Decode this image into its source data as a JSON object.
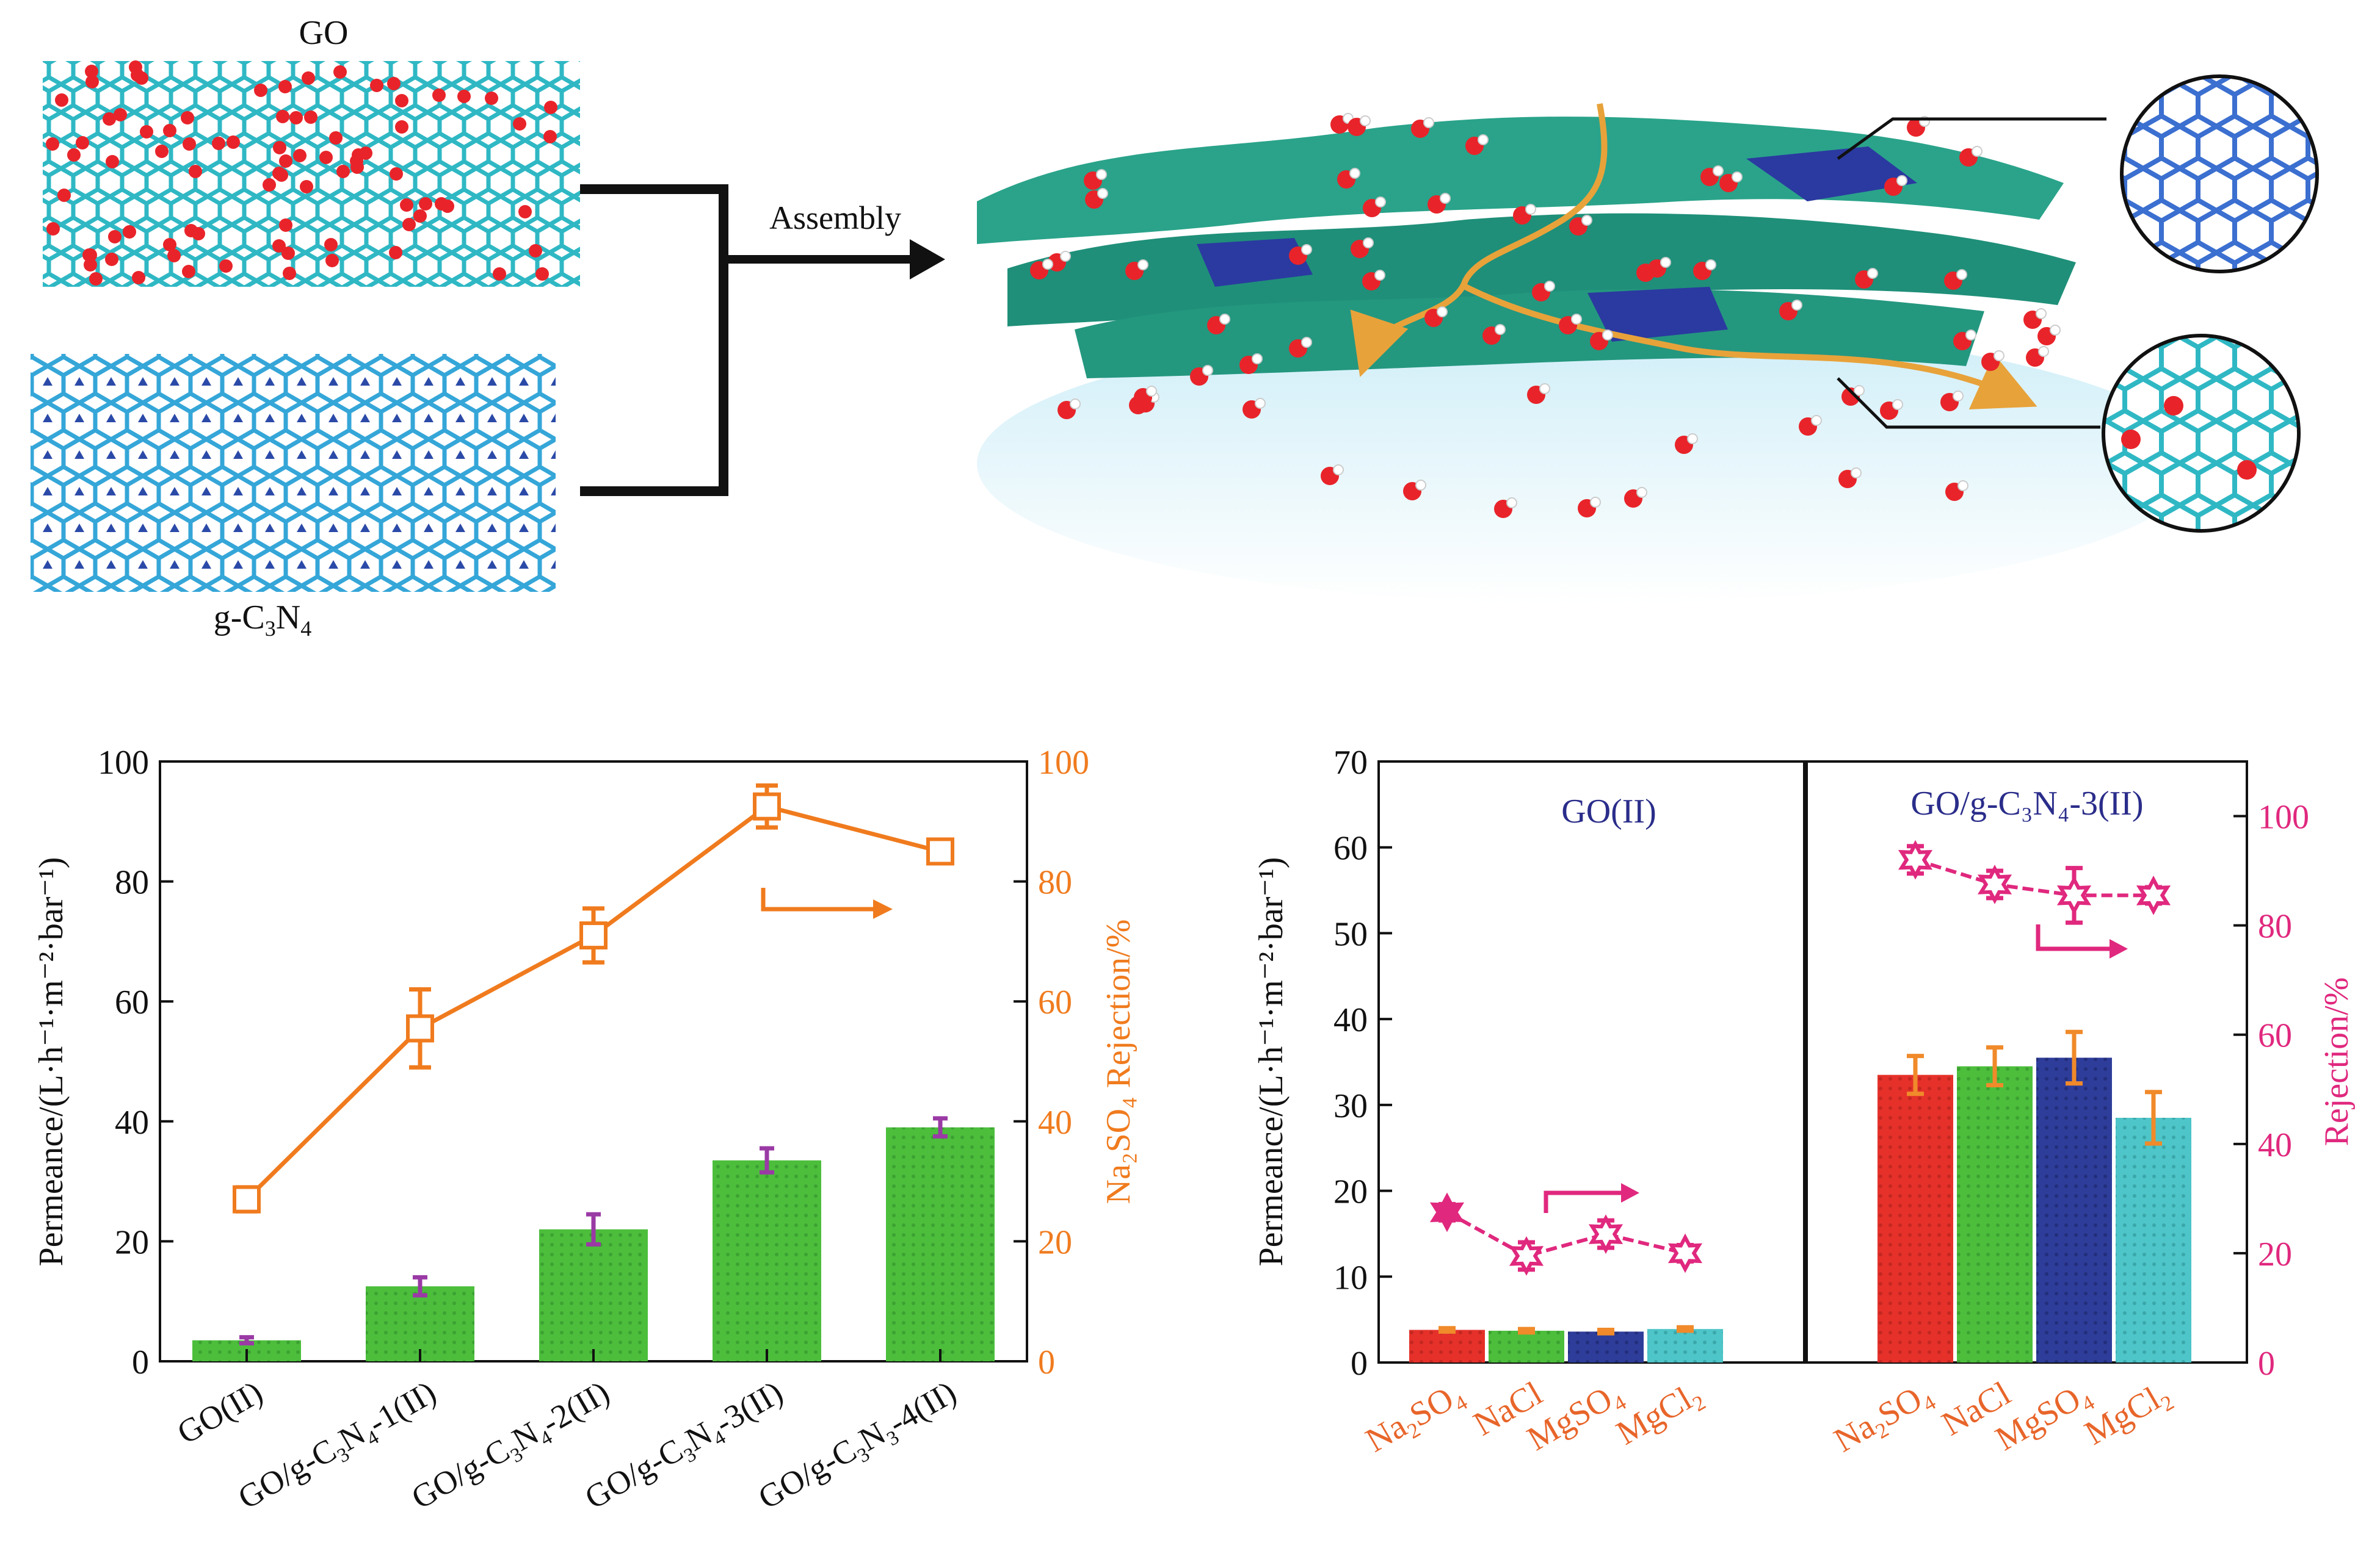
{
  "schematic": {
    "go_label": "GO",
    "gcn_label_parts": [
      "g-C",
      "3",
      "N",
      "4"
    ],
    "assembly_label": "Assembly"
  },
  "colors": {
    "go_lattice": "#2fb8c4",
    "gcn_lattice": "#2b4aa8",
    "oxygen": "#e8242a",
    "sheet": "#2aa38a",
    "path": "#e8a23a",
    "bar_green": "#4cbe3c",
    "line_orange": "#f07b1e",
    "pink": "#e0287e",
    "bar_red": "#e5312a",
    "bar_blue": "#2e3d9a",
    "bar_cyan": "#4ec5c8",
    "err_purple": "#9a3aa5",
    "navy_text": "#2a2d8a",
    "salt_text": "#e8652a"
  },
  "chart_data": [
    {
      "type": "bar",
      "ylabel": "Permeance/(L·h⁻¹·m⁻²·bar⁻¹)",
      "y2label": "Na₂SO₄ Rejection/%",
      "ylim": [
        0,
        100
      ],
      "y2lim": [
        0,
        100
      ],
      "yticks": [
        0,
        20,
        40,
        60,
        80,
        100
      ],
      "y2ticks": [
        0,
        20,
        40,
        60,
        80,
        100
      ],
      "categories": [
        "GO(II)",
        "GO/g-C₃N₄-1(II)",
        "GO/g-C₃N₄-2(II)",
        "GO/g-C₃N₄-3(II)",
        "GO/g-C₃N₃-4(II)"
      ],
      "permeance": [
        3.5,
        12.5,
        22,
        33.5,
        39
      ],
      "permeance_err": [
        0.5,
        1.5,
        2.5,
        2,
        1.5
      ],
      "rejection": [
        27,
        55.5,
        71,
        92.5,
        85
      ],
      "rejection_err": [
        2,
        6.5,
        4.5,
        3.5,
        1
      ]
    },
    {
      "type": "bar",
      "ylabel": "Permeance/(L·h⁻¹·m⁻²·bar⁻¹)",
      "y2label": "Rejection/%",
      "ylim": [
        0,
        70
      ],
      "y2lim": [
        0,
        110
      ],
      "yticks": [
        0,
        10,
        20,
        30,
        40,
        50,
        60,
        70
      ],
      "y2ticks": [
        0,
        20,
        40,
        60,
        80,
        100
      ],
      "panels": [
        {
          "title": "GO(II)",
          "categories": [
            "Na₂SO₄",
            "NaCl",
            "MgSO₄",
            "MgCl₂"
          ],
          "permeance": [
            3.8,
            3.7,
            3.6,
            3.9
          ],
          "permeance_err": [
            0.2,
            0.2,
            0.2,
            0.2
          ],
          "rejection": [
            27.5,
            19.5,
            23.5,
            20
          ],
          "rejection_err": [
            1.5,
            2.5,
            2.5,
            1.5
          ]
        },
        {
          "title": "GO/g-C₃N₄-3(II)",
          "categories": [
            "Na₂SO₄",
            "NaCl",
            "MgSO₄",
            "MgCl₂"
          ],
          "permeance": [
            33.5,
            34.5,
            35.5,
            28.5
          ],
          "permeance_err": [
            2.2,
            2.2,
            3.0,
            3.0
          ],
          "rejection": [
            92,
            87.5,
            85.5,
            85.5
          ],
          "rejection_err": [
            2.5,
            2.5,
            5,
            1.5
          ]
        }
      ]
    }
  ]
}
